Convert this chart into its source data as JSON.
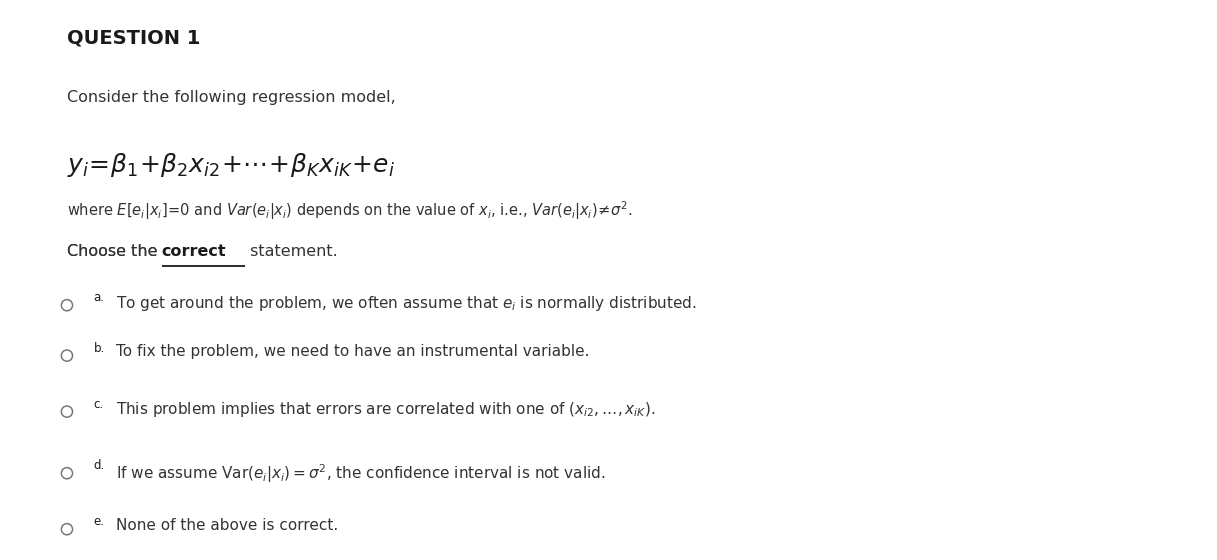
{
  "title": "QUESTION 1",
  "bg_color": "#ffffff",
  "text_color": "#2d2d2d",
  "figsize": [
    12.17,
    5.6
  ],
  "dpi": 100,
  "intro": "Consider the following regression model,",
  "choose_pre": "Choose the ",
  "choose_bold": "correct",
  "choose_post": " statement.",
  "options": [
    {
      "label": "a",
      "text_pre": "To get around the problem, we often assume that ",
      "text_math": "$e_i$",
      "text_post": " is normally distributed."
    },
    {
      "label": "b",
      "text_pre": "To fix the problem, we need to have an instrumental variable.",
      "text_math": "",
      "text_post": ""
    },
    {
      "label": "c",
      "text_pre": "This problem implies that errors are correlated with one of ",
      "text_math": "$(x_{i2}, \\ldots, x_{iK})$",
      "text_post": "."
    },
    {
      "label": "d",
      "text_pre": "If we assume ",
      "text_math": "$\\mathrm{Var}(e_i|x_i) = \\sigma^2$",
      "text_post": ", the confidence interval is not valid."
    },
    {
      "label": "e",
      "text_pre": "None of the above is correct.",
      "text_math": "",
      "text_post": ""
    }
  ],
  "circle_color": "#888888",
  "circle_size": 0.009,
  "text_dark": "#333333"
}
